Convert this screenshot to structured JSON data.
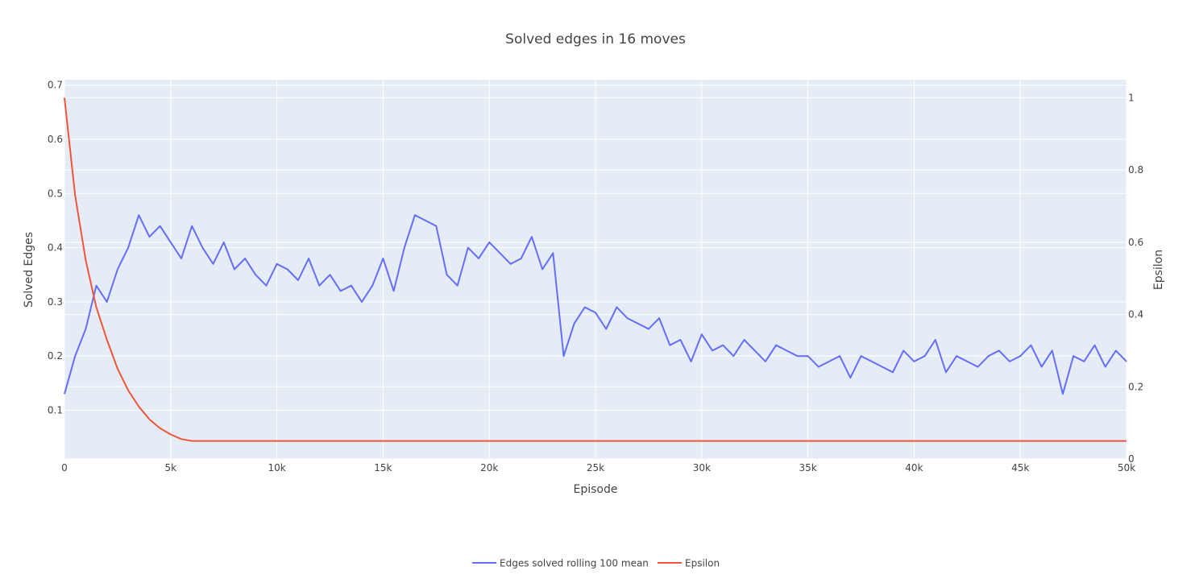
{
  "chart_data": {
    "type": "line",
    "title": "Solved edges in 16 moves",
    "xlabel": "Episode",
    "ylabel": "Solved Edges",
    "y2label": "Epsilon",
    "xlim": [
      0,
      50000
    ],
    "ylim": [
      0.01,
      0.71
    ],
    "y2lim": [
      0,
      1.05
    ],
    "x_ticks": [
      0,
      5000,
      10000,
      15000,
      20000,
      25000,
      30000,
      35000,
      40000,
      45000,
      50000
    ],
    "x_tick_labels": [
      "0",
      "5k",
      "10k",
      "15k",
      "20k",
      "25k",
      "30k",
      "35k",
      "40k",
      "45k",
      "50k"
    ],
    "y_ticks": [
      0.1,
      0.2,
      0.3,
      0.4,
      0.5,
      0.6,
      0.7
    ],
    "y_tick_labels": [
      "0.1",
      "0.2",
      "0.3",
      "0.4",
      "0.5",
      "0.6",
      "0.7"
    ],
    "y2_ticks": [
      0,
      0.2,
      0.4,
      0.6,
      0.8,
      1
    ],
    "y2_tick_labels": [
      "0",
      "0.2",
      "0.4",
      "0.6",
      "0.8",
      "1"
    ],
    "grid": true,
    "legend_position": "bottom-center",
    "plot_background": "#E5ECF6",
    "series": [
      {
        "name": "Edges solved rolling 100 mean",
        "axis": "y",
        "color": "#636EFA",
        "x": [
          0,
          500,
          1000,
          1500,
          2000,
          2500,
          3000,
          3500,
          4000,
          4500,
          5000,
          5500,
          6000,
          6500,
          7000,
          7500,
          8000,
          8500,
          9000,
          9500,
          10000,
          10500,
          11000,
          11500,
          12000,
          12500,
          13000,
          13500,
          14000,
          14500,
          15000,
          15500,
          16000,
          16500,
          17000,
          17500,
          18000,
          18500,
          19000,
          19500,
          20000,
          20500,
          21000,
          21500,
          22000,
          22500,
          23000,
          23500,
          24000,
          24500,
          25000,
          25500,
          26000,
          26500,
          27000,
          27500,
          28000,
          28500,
          29000,
          29500,
          30000,
          30500,
          31000,
          31500,
          32000,
          32500,
          33000,
          33500,
          34000,
          34500,
          35000,
          35500,
          36000,
          36500,
          37000,
          37500,
          38000,
          38500,
          39000,
          39500,
          40000,
          40500,
          41000,
          41500,
          42000,
          42500,
          43000,
          43500,
          44000,
          44500,
          45000,
          45500,
          46000,
          46500,
          47000,
          47500,
          48000,
          48500,
          49000,
          49500,
          50000
        ],
        "y": [
          0.13,
          0.2,
          0.25,
          0.33,
          0.3,
          0.36,
          0.4,
          0.46,
          0.42,
          0.44,
          0.41,
          0.38,
          0.44,
          0.4,
          0.37,
          0.41,
          0.36,
          0.38,
          0.35,
          0.33,
          0.37,
          0.36,
          0.34,
          0.38,
          0.33,
          0.35,
          0.32,
          0.33,
          0.3,
          0.33,
          0.38,
          0.32,
          0.4,
          0.46,
          0.45,
          0.44,
          0.35,
          0.33,
          0.4,
          0.38,
          0.41,
          0.39,
          0.37,
          0.38,
          0.42,
          0.36,
          0.39,
          0.2,
          0.26,
          0.29,
          0.28,
          0.25,
          0.29,
          0.27,
          0.26,
          0.25,
          0.27,
          0.22,
          0.23,
          0.19,
          0.24,
          0.21,
          0.22,
          0.2,
          0.23,
          0.21,
          0.19,
          0.22,
          0.21,
          0.2,
          0.2,
          0.18,
          0.19,
          0.2,
          0.16,
          0.2,
          0.19,
          0.18,
          0.17,
          0.21,
          0.19,
          0.2,
          0.23,
          0.17,
          0.2,
          0.19,
          0.18,
          0.2,
          0.21,
          0.19,
          0.2,
          0.22,
          0.18,
          0.21,
          0.13,
          0.2,
          0.19,
          0.22,
          0.18,
          0.21,
          0.19
        ]
      },
      {
        "name": "Epsilon",
        "axis": "y2",
        "color": "#EF553B",
        "x": [
          0,
          500,
          1000,
          1500,
          2000,
          2500,
          3000,
          3500,
          4000,
          4500,
          5000,
          5500,
          6000,
          10000,
          15000,
          20000,
          25000,
          30000,
          35000,
          40000,
          45000,
          50000
        ],
        "y": [
          1.0,
          0.73,
          0.55,
          0.42,
          0.33,
          0.25,
          0.19,
          0.145,
          0.11,
          0.085,
          0.068,
          0.055,
          0.05,
          0.05,
          0.05,
          0.05,
          0.05,
          0.05,
          0.05,
          0.05,
          0.05,
          0.05
        ]
      }
    ]
  }
}
